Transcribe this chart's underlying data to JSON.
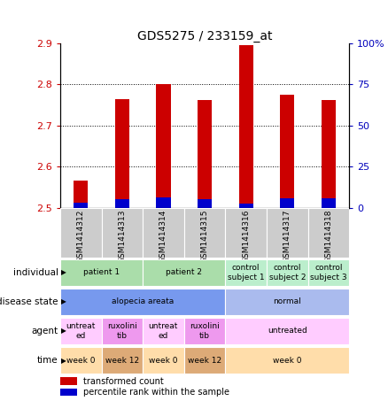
{
  "title": "GDS5275 / 233159_at",
  "samples": [
    "GSM1414312",
    "GSM1414313",
    "GSM1414314",
    "GSM1414315",
    "GSM1414316",
    "GSM1414317",
    "GSM1414318"
  ],
  "red_values": [
    2.565,
    2.765,
    2.8,
    2.763,
    2.895,
    2.775,
    2.763
  ],
  "blue_values": [
    2.513,
    2.52,
    2.525,
    2.521,
    2.511,
    2.523,
    2.523
  ],
  "bar_base": 2.5,
  "ylim": [
    2.5,
    2.9
  ],
  "yticks_left": [
    2.5,
    2.6,
    2.7,
    2.8,
    2.9
  ],
  "yticks_right": [
    0,
    25,
    50,
    75,
    100
  ],
  "yticks_right_labels": [
    "0",
    "25",
    "50",
    "75",
    "100%"
  ],
  "annotation_rows": [
    {
      "label": "individual",
      "cells": [
        {
          "text": "patient 1",
          "span": [
            0,
            2
          ],
          "color": "#aaddaa"
        },
        {
          "text": "patient 2",
          "span": [
            2,
            4
          ],
          "color": "#aaddaa"
        },
        {
          "text": "control\nsubject 1",
          "span": [
            4,
            5
          ],
          "color": "#bbeecc"
        },
        {
          "text": "control\nsubject 2",
          "span": [
            5,
            6
          ],
          "color": "#bbeecc"
        },
        {
          "text": "control\nsubject 3",
          "span": [
            6,
            7
          ],
          "color": "#bbeecc"
        }
      ]
    },
    {
      "label": "disease state",
      "cells": [
        {
          "text": "alopecia areata",
          "span": [
            0,
            4
          ],
          "color": "#7799ee"
        },
        {
          "text": "normal",
          "span": [
            4,
            7
          ],
          "color": "#aabbee"
        }
      ]
    },
    {
      "label": "agent",
      "cells": [
        {
          "text": "untreat\ned",
          "span": [
            0,
            1
          ],
          "color": "#ffccff"
        },
        {
          "text": "ruxolini\ntib",
          "span": [
            1,
            2
          ],
          "color": "#ee99ee"
        },
        {
          "text": "untreat\ned",
          "span": [
            2,
            3
          ],
          "color": "#ffccff"
        },
        {
          "text": "ruxolini\ntib",
          "span": [
            3,
            4
          ],
          "color": "#ee99ee"
        },
        {
          "text": "untreated",
          "span": [
            4,
            7
          ],
          "color": "#ffccff"
        }
      ]
    },
    {
      "label": "time",
      "cells": [
        {
          "text": "week 0",
          "span": [
            0,
            1
          ],
          "color": "#ffddaa"
        },
        {
          "text": "week 12",
          "span": [
            1,
            2
          ],
          "color": "#ddaa77"
        },
        {
          "text": "week 0",
          "span": [
            2,
            3
          ],
          "color": "#ffddaa"
        },
        {
          "text": "week 12",
          "span": [
            3,
            4
          ],
          "color": "#ddaa77"
        },
        {
          "text": "week 0",
          "span": [
            4,
            7
          ],
          "color": "#ffddaa"
        }
      ]
    }
  ],
  "legend": [
    {
      "color": "#cc0000",
      "label": "transformed count"
    },
    {
      "color": "#0000cc",
      "label": "percentile rank within the sample"
    }
  ],
  "bar_width": 0.35,
  "bar_color_red": "#cc0000",
  "bar_color_blue": "#0000cc",
  "grid_color": "black",
  "left_axis_color": "#cc0000",
  "right_axis_color": "#0000bb",
  "sample_area_color": "#cccccc"
}
